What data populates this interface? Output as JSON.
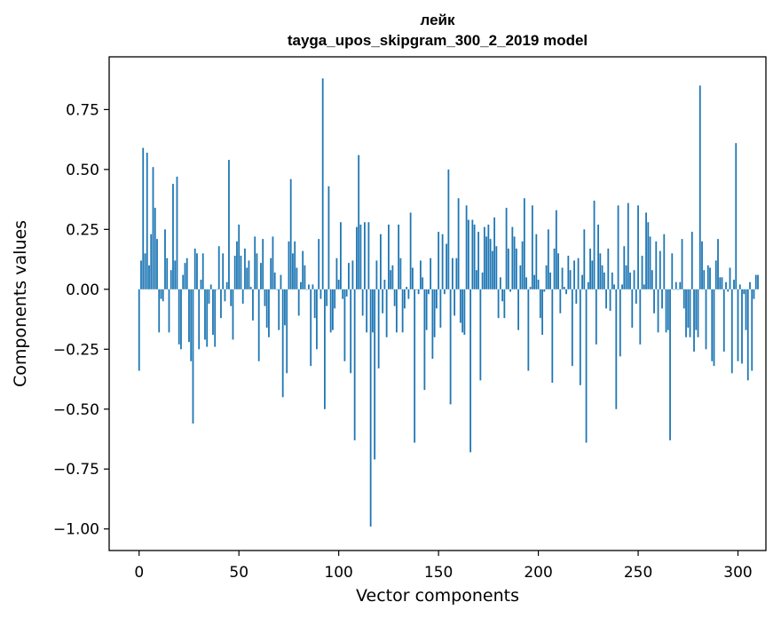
{
  "chart_data": {
    "type": "bar",
    "title": "лейк",
    "subtitle": "tayga_upos_skipgram_300_2_2019 model",
    "xlabel": "Vector components",
    "ylabel": "Components values",
    "xlim": [
      -15,
      314
    ],
    "ylim": [
      -1.09,
      0.97
    ],
    "xticks": [
      0,
      50,
      100,
      150,
      200,
      250,
      300
    ],
    "yticks": [
      0.75,
      0.5,
      0.25,
      0.0,
      -0.25,
      -0.5,
      -0.75,
      -1.0
    ],
    "xtick_labels": [
      "0",
      "50",
      "100",
      "150",
      "200",
      "250",
      "300"
    ],
    "ytick_labels": [
      "0.75",
      "0.50",
      "0.25",
      "0.00",
      "−0.25",
      "−0.50",
      "−0.75",
      "−1.00"
    ],
    "grid": false,
    "bar_color": "#1f77b4",
    "values": [
      -0.34,
      0.12,
      0.59,
      0.15,
      0.57,
      0.1,
      0.23,
      0.51,
      0.34,
      0.21,
      -0.18,
      -0.04,
      -0.05,
      0.25,
      0.13,
      -0.18,
      0.08,
      0.44,
      0.12,
      0.47,
      -0.23,
      -0.25,
      0.06,
      0.11,
      0.13,
      -0.22,
      -0.3,
      -0.56,
      0.17,
      0.15,
      -0.25,
      0.04,
      0.15,
      -0.21,
      -0.24,
      -0.06,
      0.02,
      -0.19,
      -0.24,
      0.0,
      0.18,
      -0.12,
      0.15,
      -0.05,
      0.03,
      0.54,
      -0.07,
      -0.21,
      0.14,
      0.2,
      0.27,
      0.14,
      -0.06,
      0.17,
      0.09,
      0.12,
      0.01,
      -0.13,
      0.22,
      0.15,
      -0.3,
      0.11,
      0.21,
      -0.07,
      -0.16,
      -0.2,
      0.13,
      0.22,
      0.07,
      0.0,
      -0.17,
      0.06,
      -0.45,
      -0.15,
      -0.35,
      0.2,
      0.46,
      0.15,
      0.2,
      0.09,
      -0.11,
      0.03,
      0.16,
      0.1,
      0.0,
      0.02,
      -0.32,
      0.02,
      -0.12,
      -0.25,
      0.21,
      -0.04,
      0.88,
      -0.5,
      -0.07,
      0.43,
      -0.18,
      -0.17,
      -0.08,
      0.13,
      0.04,
      0.28,
      -0.04,
      -0.3,
      -0.03,
      0.11,
      -0.35,
      0.12,
      -0.63,
      0.26,
      0.56,
      0.27,
      -0.11,
      0.28,
      -0.18,
      0.28,
      -0.99,
      -0.18,
      -0.71,
      0.12,
      -0.33,
      0.23,
      -0.1,
      0.04,
      -0.2,
      0.27,
      0.08,
      0.1,
      -0.07,
      -0.18,
      0.27,
      0.13,
      -0.18,
      -0.08,
      0.01,
      -0.04,
      0.32,
      0.09,
      -0.64,
      0.0,
      -0.02,
      0.12,
      0.05,
      -0.42,
      -0.17,
      -0.02,
      0.13,
      -0.29,
      -0.2,
      -0.08,
      0.24,
      -0.16,
      0.23,
      -0.02,
      0.19,
      0.5,
      -0.48,
      0.13,
      -0.11,
      0.13,
      0.38,
      -0.14,
      -0.18,
      -0.19,
      0.35,
      0.29,
      -0.68,
      0.29,
      0.27,
      0.08,
      0.24,
      -0.38,
      0.07,
      0.26,
      0.22,
      0.27,
      0.21,
      0.16,
      0.3,
      0.18,
      -0.12,
      0.05,
      -0.05,
      -0.12,
      0.34,
      0.17,
      -0.01,
      0.26,
      0.22,
      0.17,
      -0.17,
      0.1,
      0.2,
      0.38,
      0.05,
      -0.34,
      0.01,
      0.35,
      0.06,
      0.23,
      0.04,
      -0.12,
      -0.19,
      -0.01,
      0.1,
      0.25,
      0.07,
      -0.39,
      0.17,
      0.33,
      0.15,
      -0.1,
      0.09,
      0.01,
      -0.02,
      0.14,
      0.08,
      -0.32,
      0.12,
      -0.06,
      0.13,
      -0.4,
      0.06,
      0.25,
      -0.64,
      0.03,
      0.17,
      0.12,
      0.37,
      -0.23,
      0.27,
      0.15,
      0.1,
      0.07,
      -0.08,
      0.17,
      -0.09,
      0.07,
      0.02,
      -0.5,
      0.35,
      -0.28,
      0.02,
      0.18,
      0.1,
      0.36,
      0.07,
      -0.16,
      0.08,
      -0.06,
      0.35,
      -0.23,
      0.14,
      0.02,
      0.32,
      0.28,
      0.22,
      0.08,
      -0.1,
      0.2,
      -0.18,
      0.16,
      -0.08,
      0.23,
      -0.18,
      -0.17,
      -0.63,
      0.15,
      0.0,
      0.03,
      0.0,
      0.03,
      0.21,
      -0.08,
      -0.2,
      -0.16,
      -0.2,
      0.24,
      -0.26,
      -0.17,
      -0.2,
      0.85,
      0.2,
      0.08,
      -0.25,
      0.1,
      0.09,
      -0.3,
      -0.32,
      0.12,
      0.21,
      0.05,
      0.05,
      -0.26,
      0.03,
      -0.01,
      0.09,
      -0.35,
      0.04,
      0.61,
      -0.3,
      0.02,
      -0.31,
      -0.02,
      -0.17,
      -0.38,
      0.03,
      -0.34,
      -0.04,
      0.06,
      0.06
    ]
  }
}
